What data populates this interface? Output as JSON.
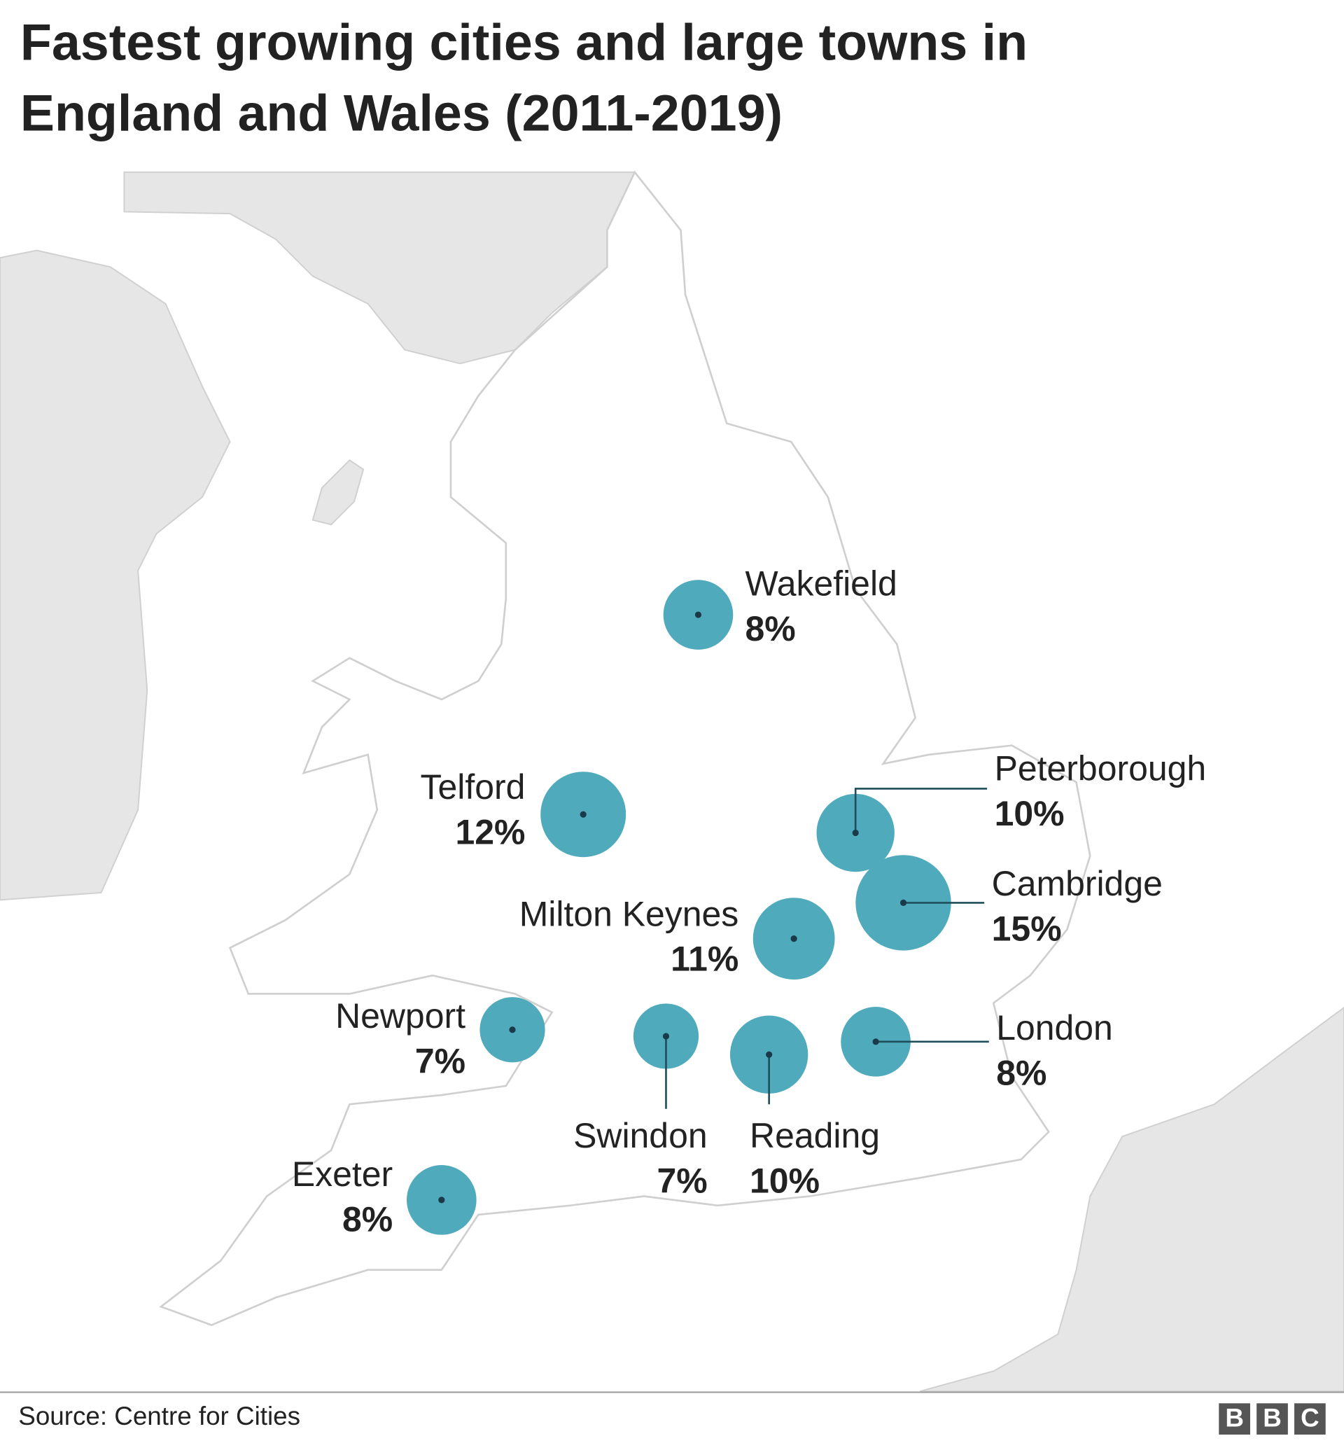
{
  "title_lines": [
    "Fastest growing cities and large towns in",
    "England and Wales (2011-2019)"
  ],
  "cities": [
    {
      "name": "Wakefield",
      "value": 8,
      "value_label": "8%"
    },
    {
      "name": "Telford",
      "value": 12,
      "value_label": "12%"
    },
    {
      "name": "Peterborough",
      "value": 10,
      "value_label": "10%"
    },
    {
      "name": "Cambridge",
      "value": 15,
      "value_label": "15%"
    },
    {
      "name": "Milton Keynes",
      "value": 11,
      "value_label": "11%"
    },
    {
      "name": "Newport",
      "value": 7,
      "value_label": "7%"
    },
    {
      "name": "Swindon",
      "value": 7,
      "value_label": "7%"
    },
    {
      "name": "Reading",
      "value": 10,
      "value_label": "10%"
    },
    {
      "name": "London",
      "value": 8,
      "value_label": "8%"
    },
    {
      "name": "Exeter",
      "value": 8,
      "value_label": "8%"
    }
  ],
  "bubble_color": "#4faabc",
  "source": "Source: Centre for Cities",
  "logo": [
    "B",
    "B",
    "C"
  ]
}
